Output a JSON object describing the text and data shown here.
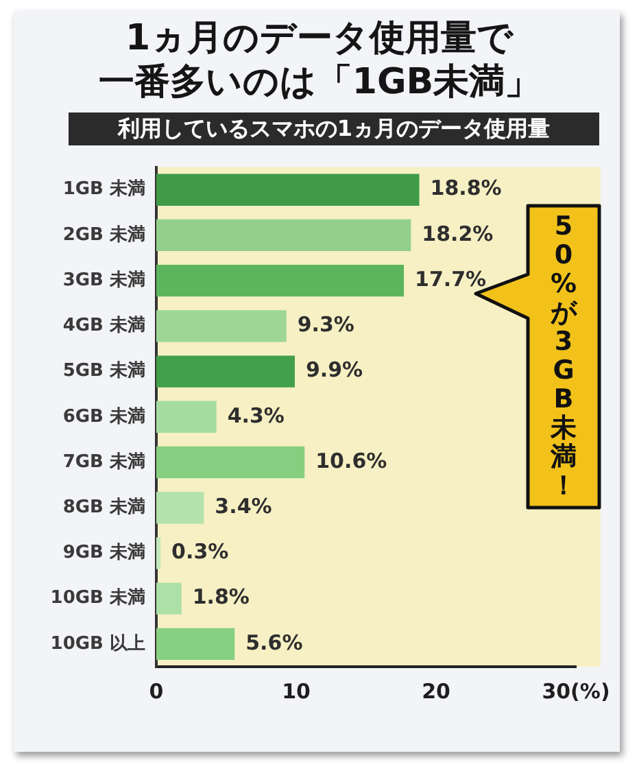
{
  "chart_data": {
    "type": "bar",
    "orientation": "horizontal",
    "title": "1ヵ月のデータ使用量で一番多いのは「1GB未満」",
    "subtitle": "利用しているスマホの1ヵ月のデータ使用量",
    "categories": [
      "1GB 未満",
      "2GB 未満",
      "3GB 未満",
      "4GB 未満",
      "5GB 未満",
      "6GB 未満",
      "7GB 未満",
      "8GB 未満",
      "9GB 未満",
      "10GB 未満",
      "10GB 以上"
    ],
    "values": [
      18.8,
      18.2,
      17.7,
      9.3,
      9.9,
      4.3,
      10.6,
      3.4,
      0.3,
      1.8,
      5.6
    ],
    "value_labels": [
      "18.8%",
      "18.2%",
      "17.7%",
      "9.3%",
      "9.9%",
      "4.3%",
      "10.6%",
      "3.4%",
      "0.3%",
      "1.8%",
      "5.6%"
    ],
    "colors": [
      "#3f9b48",
      "#92d08c",
      "#5cb45c",
      "#9dd696",
      "#42a04a",
      "#a6dca0",
      "#86cf80",
      "#b4e2ad",
      "#c2e8bc",
      "#ace0a6",
      "#86d083"
    ],
    "xlim": [
      0,
      30
    ],
    "xticks": [
      0,
      10,
      20,
      {
        "value": 30,
        "label": "30(%)"
      }
    ],
    "annotations": [
      "50%が3GB未満！"
    ]
  }
}
